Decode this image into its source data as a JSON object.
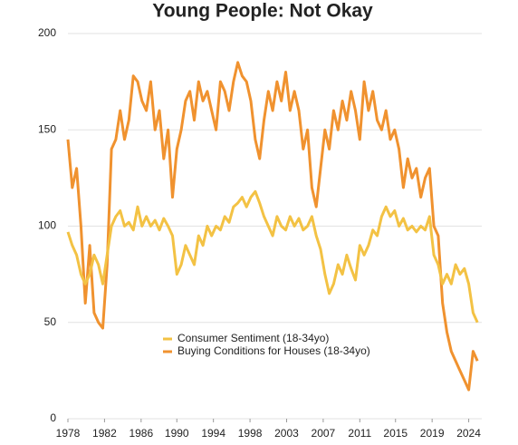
{
  "chart_data": {
    "type": "line",
    "title": "Young People: Not Okay",
    "x": [
      1978,
      1978.5,
      1979,
      1979.5,
      1980,
      1980.5,
      1981,
      1981.5,
      1982,
      1982.5,
      1983,
      1983.5,
      1984,
      1984.5,
      1985,
      1985.5,
      1986,
      1986.5,
      1987,
      1987.5,
      1988,
      1988.5,
      1989,
      1989.5,
      1990,
      1990.5,
      1991,
      1991.5,
      1992,
      1992.5,
      1993,
      1993.5,
      1994,
      1994.5,
      1995,
      1995.5,
      1996,
      1996.5,
      1997,
      1997.5,
      1998,
      1998.5,
      1999,
      1999.5,
      2000,
      2000.5,
      2001,
      2001.5,
      2002,
      2002.5,
      2003,
      2003.5,
      2004,
      2004.5,
      2005,
      2005.5,
      2006,
      2006.5,
      2007,
      2007.5,
      2008,
      2008.5,
      2009,
      2009.5,
      2010,
      2010.5,
      2011,
      2011.5,
      2012,
      2012.5,
      2013,
      2013.5,
      2014,
      2014.5,
      2015,
      2015.5,
      2016,
      2016.5,
      2017,
      2017.5,
      2018,
      2018.5,
      2019,
      2019.5,
      2020,
      2020.5,
      2021,
      2021.5,
      2022,
      2022.5,
      2023,
      2023.5,
      2024,
      2024.5,
      2025
    ],
    "series": [
      {
        "name": "Consumer Sentiment (18-34yo)",
        "color": "#f3c244",
        "values": [
          97,
          90,
          85,
          75,
          70,
          75,
          85,
          80,
          70,
          85,
          100,
          105,
          108,
          100,
          102,
          98,
          110,
          100,
          105,
          100,
          103,
          98,
          104,
          100,
          95,
          75,
          80,
          90,
          85,
          80,
          95,
          90,
          100,
          95,
          100,
          98,
          105,
          102,
          110,
          112,
          115,
          110,
          115,
          118,
          112,
          105,
          100,
          95,
          105,
          100,
          98,
          105,
          100,
          104,
          98,
          100,
          105,
          95,
          88,
          75,
          65,
          70,
          80,
          75,
          85,
          78,
          72,
          90,
          85,
          90,
          98,
          95,
          105,
          110,
          105,
          108,
          100,
          104,
          98,
          100,
          97,
          100,
          98,
          105,
          85,
          80,
          70,
          75,
          70,
          80,
          75,
          78,
          70,
          55,
          50
        ]
      },
      {
        "name": "Buying Conditions for Houses (18-34yo)",
        "color": "#f0922f",
        "values": [
          145,
          120,
          130,
          100,
          60,
          90,
          55,
          50,
          47,
          80,
          140,
          145,
          160,
          145,
          155,
          178,
          175,
          165,
          160,
          175,
          150,
          160,
          135,
          150,
          115,
          140,
          150,
          165,
          170,
          155,
          175,
          165,
          170,
          160,
          150,
          175,
          170,
          160,
          175,
          185,
          178,
          175,
          165,
          145,
          135,
          155,
          170,
          160,
          175,
          165,
          180,
          160,
          170,
          160,
          140,
          150,
          120,
          110,
          130,
          150,
          140,
          160,
          150,
          165,
          155,
          170,
          160,
          145,
          175,
          160,
          170,
          155,
          150,
          160,
          145,
          150,
          140,
          120,
          135,
          125,
          130,
          115,
          125,
          130,
          100,
          95,
          60,
          45,
          35,
          30,
          25,
          20,
          15,
          35,
          30
        ]
      }
    ],
    "xlim": [
      1978,
      2025.5
    ],
    "xticks": [
      {
        "value": 1978,
        "label": "1978"
      },
      {
        "value": 1982.2,
        "label": "1982"
      },
      {
        "value": 1986.4,
        "label": "1986"
      },
      {
        "value": 1990.5,
        "label": "1990"
      },
      {
        "value": 1994.7,
        "label": "1994"
      },
      {
        "value": 1998.9,
        "label": "1998"
      },
      {
        "value": 2003.1,
        "label": "2003"
      },
      {
        "value": 2007.3,
        "label": "2007"
      },
      {
        "value": 2011.5,
        "label": "2011"
      },
      {
        "value": 2015.6,
        "label": "2015"
      },
      {
        "value": 2019.8,
        "label": "2019"
      },
      {
        "value": 2024,
        "label": "2024"
      }
    ],
    "ylim": [
      0,
      200
    ],
    "yticks": [
      0,
      50,
      100,
      150,
      200
    ],
    "grid": true
  }
}
